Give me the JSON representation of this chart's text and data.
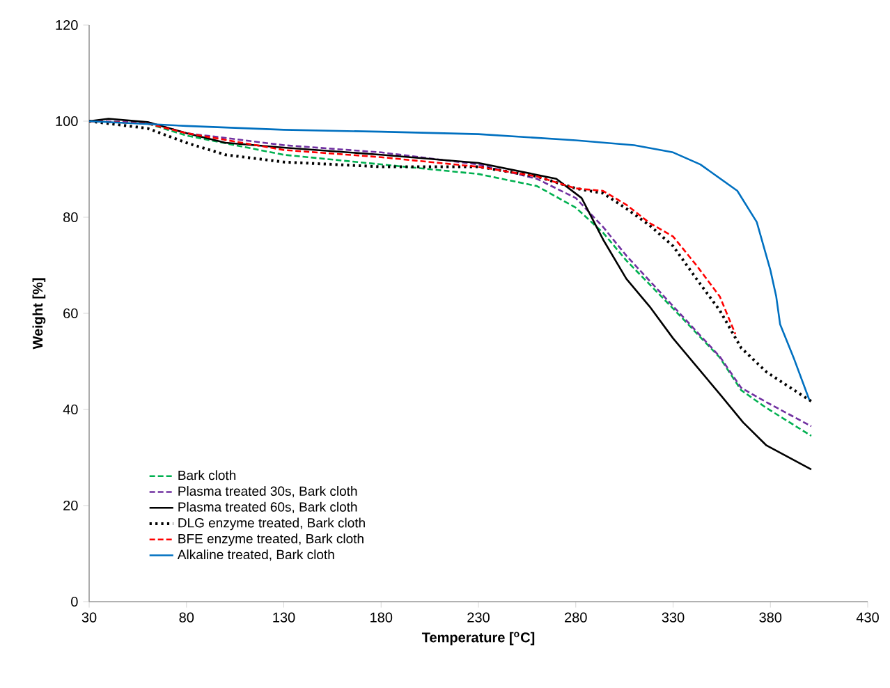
{
  "chart_data": {
    "type": "line",
    "xlabel": "Temperature [$^{o}$C]",
    "ylabel": "Weight [%]",
    "xlim": [
      30,
      430
    ],
    "xticks": [
      30,
      80,
      130,
      180,
      230,
      280,
      330,
      380,
      430
    ],
    "ylim": [
      0,
      120
    ],
    "yticks": [
      0,
      20,
      40,
      60,
      80,
      100,
      120
    ],
    "grid": false,
    "legend": "bottom left",
    "marker": "none",
    "series": [
      {
        "name": "Bark cloth",
        "color": "#00b050",
        "line_style": "dashed",
        "x": [
          30,
          60,
          80,
          130,
          180,
          230,
          260,
          280,
          294,
          306,
          330,
          354,
          365,
          378,
          401
        ],
        "values": [
          100,
          99.5,
          97,
          93,
          91,
          89,
          86.5,
          82,
          76.8,
          71,
          61,
          50.8,
          44,
          40.3,
          34.5
        ]
      },
      {
        "name": "Plasma treated 30s, Bark cloth",
        "color": "#7030a0",
        "line_style": "dashed",
        "x": [
          30,
          60,
          80,
          130,
          180,
          230,
          260,
          280,
          294,
          306,
          330,
          354,
          365,
          378,
          401
        ],
        "values": [
          100,
          99.8,
          97.5,
          95,
          93.5,
          91,
          88,
          84,
          78,
          72,
          61.5,
          51,
          44.5,
          41.5,
          36.5
        ]
      },
      {
        "name": "Plasma treated 60s, Bark cloth",
        "color": "#000000",
        "line_style": "solid",
        "x": [
          30,
          40,
          60,
          80,
          100,
          130,
          180,
          230,
          270,
          283,
          294,
          306,
          318,
          330,
          342,
          354,
          366,
          378,
          401
        ],
        "values": [
          100,
          100.5,
          99.8,
          97.5,
          95.5,
          94.5,
          93,
          91.3,
          88,
          84,
          75.4,
          67.2,
          61.4,
          54.8,
          49,
          43.2,
          37.3,
          32.5,
          27.5
        ]
      },
      {
        "name": "DLG enzyme treated, Bark cloth",
        "color": "#000000",
        "line_style": "dotted",
        "x": [
          30,
          60,
          80,
          100,
          130,
          180,
          230,
          260,
          280,
          294,
          306,
          318,
          330,
          342,
          354,
          365,
          378,
          390,
          401
        ],
        "values": [
          100,
          98.5,
          95.5,
          93,
          91.5,
          90.5,
          90.5,
          88.5,
          86,
          85,
          81.8,
          78.3,
          74,
          67.2,
          60.6,
          52.8,
          47.8,
          44.6,
          41.7
        ]
      },
      {
        "name": "BFE enzyme treated, Bark cloth",
        "color": "#ff0000",
        "line_style": "dashed",
        "x": [
          30,
          60,
          80,
          130,
          180,
          230,
          260,
          280,
          294,
          306,
          318,
          330,
          342,
          354,
          362
        ],
        "values": [
          100,
          99.5,
          97.5,
          94,
          92.5,
          90.5,
          88.5,
          86,
          85.5,
          82.6,
          78.8,
          76,
          70,
          63.5,
          55.7
        ]
      },
      {
        "name": "Alkaline treated, Bark cloth",
        "color": "#0070c0",
        "line_style": "solid",
        "x": [
          30,
          80,
          130,
          180,
          230,
          280,
          310,
          330,
          344,
          363,
          373,
          380,
          383,
          385,
          392,
          400
        ],
        "values": [
          100,
          99,
          98.2,
          97.8,
          97.3,
          96,
          95,
          93.5,
          91,
          85.5,
          79,
          69,
          63.5,
          57.7,
          50.7,
          42
        ]
      }
    ]
  }
}
